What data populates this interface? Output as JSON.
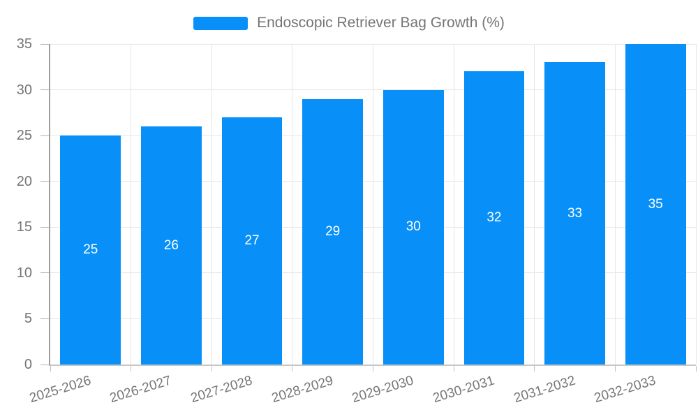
{
  "legend": {
    "items": [
      {
        "label": "Endoscopic Retriever Bag Growth (%)",
        "color": "#0890F8"
      }
    ]
  },
  "chart_data": {
    "type": "bar",
    "title": "Endoscopic Retriever Bag Growth (%)",
    "categories": [
      "2025-2026",
      "2026-2027",
      "2027-2028",
      "2028-2029",
      "2029-2030",
      "2030-2031",
      "2031-2032",
      "2032-2033"
    ],
    "series": [
      {
        "name": "Endoscopic Retriever Bag Growth (%)",
        "values": [
          25,
          26,
          27,
          29,
          30,
          32,
          33,
          35
        ]
      }
    ],
    "value_labels": [
      25,
      26,
      27,
      29,
      30,
      32,
      33,
      35
    ],
    "value_label_position": "inside-center",
    "xlabel": "",
    "ylabel": "",
    "ylim": [
      0,
      35
    ],
    "yticks": [
      0,
      5,
      10,
      15,
      20,
      25,
      30,
      35
    ],
    "grid": true,
    "legend_position": "top-center"
  },
  "colors": {
    "bar": "#0890F8",
    "axis_y_line": "#9E9E9E",
    "axis_x_line": "#C6C6C6",
    "gridline": "#E6E6E6",
    "tick_label": "#757575",
    "legend_text": "#757575",
    "value_label": "#FFFFFF",
    "background": "#FFFFFF"
  }
}
